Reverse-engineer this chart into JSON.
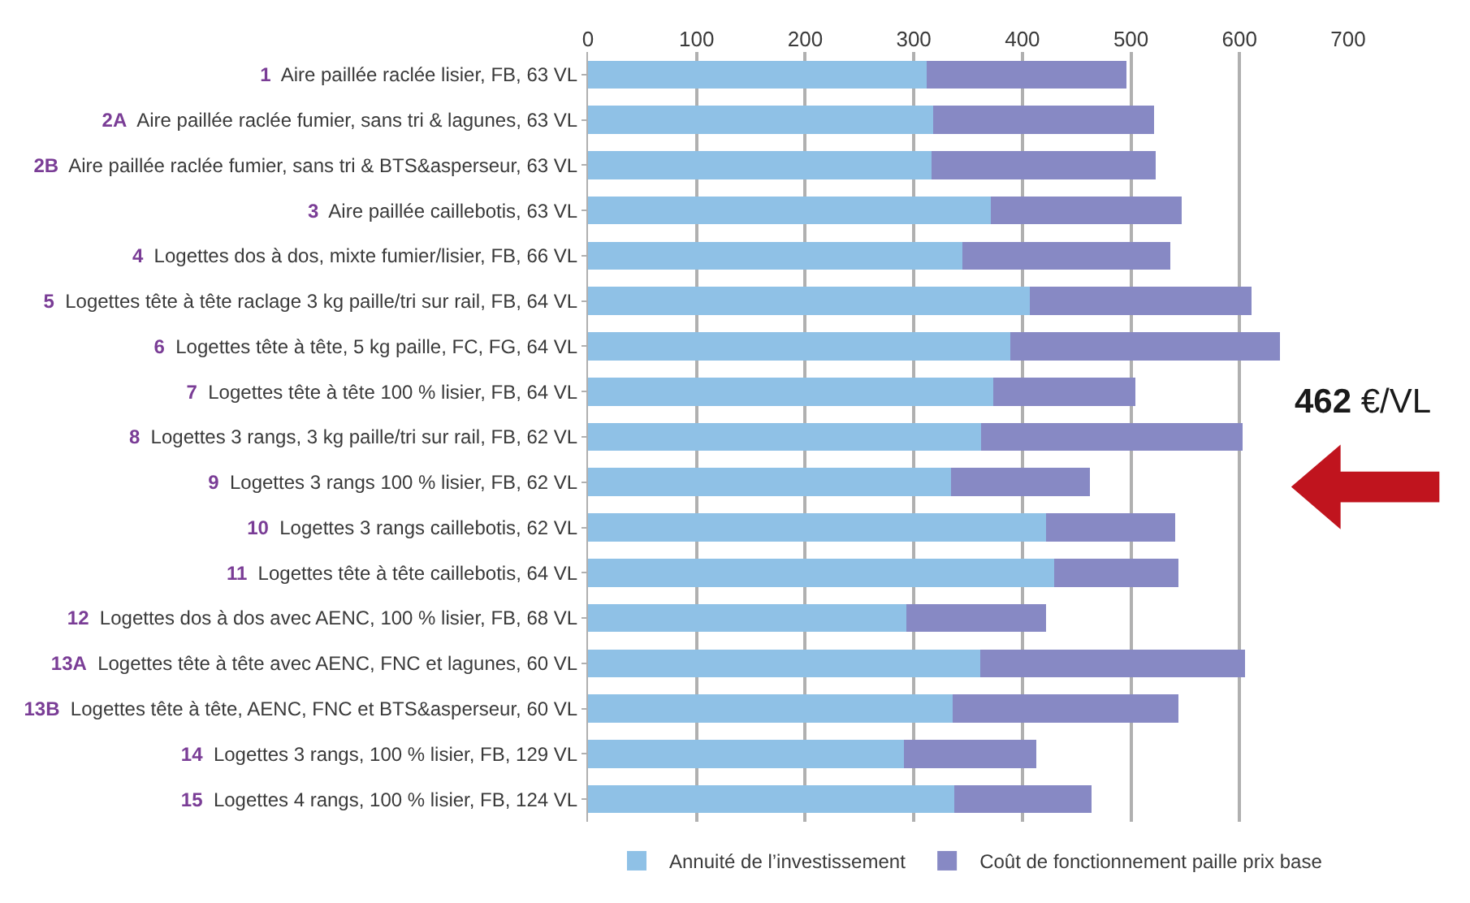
{
  "chart_data": {
    "type": "bar",
    "orientation": "horizontal",
    "stacked": true,
    "categories": [
      "1 Aire paillée raclée lisier, FB, 63 VL",
      "2A Aire paillée raclée fumier, sans tri & lagunes, 63 VL",
      "2B Aire paillée raclée fumier, sans tri & BTS&asperseur, 63 VL",
      "3 Aire paillée caillebotis, 63 VL",
      "4 Logettes dos à dos, mixte fumier/lisier, FB, 66 VL",
      "5 Logettes tête à tête raclage 3 kg paille/tri sur rail, FB, 64 VL",
      "6 Logettes tête à tête, 5 kg paille, FC, FG, 64 VL",
      "7 Logettes tête à tête 100 % lisier, FB, 64 VL",
      "8 Logettes 3 rangs, 3 kg paille/tri sur rail, FB, 62 VL",
      "9 Logettes 3 rangs 100 % lisier, FB, 62 VL",
      "10 Logettes 3 rangs caillebotis, 62 VL",
      "11 Logettes tête à tête caillebotis, 64 VL",
      "12 Logettes dos à dos avec AENC, 100 % lisier, FB, 68 VL",
      "13A Logettes tête à tête avec AENC, FNC et lagunes, 60 VL",
      "13B Logettes tête à tête, AENC, FNC et BTS&asperseur, 60 VL",
      "14 Logettes 3 rangs, 100 % lisier, FB, 129 VL",
      "15 Logettes 4 rangs, 100 % lisier, FB, 124 VL"
    ],
    "series": [
      {
        "name": "Annuité de l’investissement",
        "color": "#8fc1e6",
        "values": [
          312,
          318,
          316,
          371,
          345,
          407,
          389,
          373,
          362,
          334,
          422,
          429,
          293,
          361,
          336,
          291,
          337
        ]
      },
      {
        "name": "Coût de fonctionnement paille prix base",
        "color": "#8789c4",
        "values": [
          184,
          203,
          207,
          176,
          191,
          204,
          248,
          131,
          241,
          128,
          119,
          115,
          129,
          244,
          208,
          122,
          127
        ]
      }
    ],
    "xlim": [
      0,
      700
    ],
    "xticks": [
      0,
      100,
      200,
      300,
      400,
      500,
      600,
      700
    ],
    "grid": "x",
    "legend": "bottom",
    "annotations": [
      "462 €/VL"
    ]
  }
}
